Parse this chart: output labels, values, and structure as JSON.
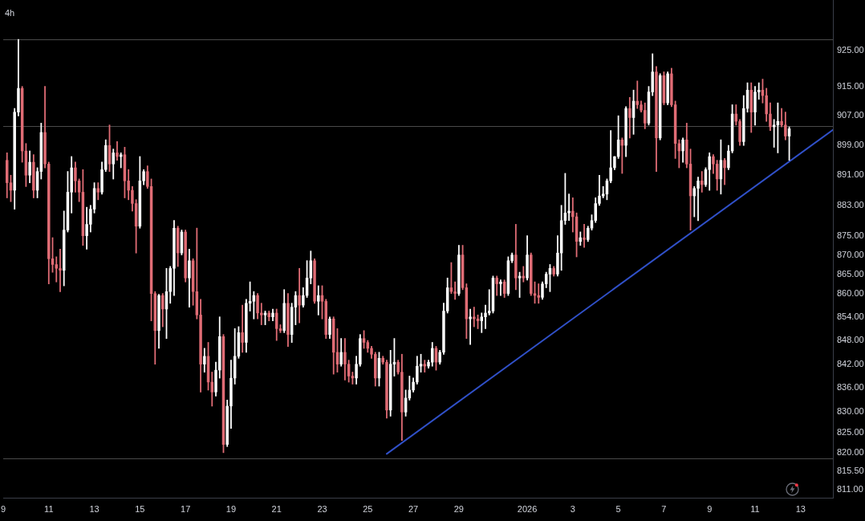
{
  "chart_data": {
    "type": "candlestick",
    "title": "4h",
    "x": [
      "2025-12-09T04:00",
      "2025-12-09T08:00",
      "2025-12-09T12:00",
      "2025-12-09T16:00",
      "2025-12-09T20:00",
      "2025-12-10T00:00",
      "2025-12-10T04:00",
      "2025-12-10T08:00",
      "2025-12-10T12:00",
      "2025-12-10T16:00",
      "2025-12-10T20:00",
      "2025-12-11T00:00",
      "2025-12-11T04:00",
      "2025-12-11T08:00",
      "2025-12-11T12:00",
      "2025-12-11T16:00",
      "2025-12-11T20:00",
      "2025-12-12T00:00",
      "2025-12-12T04:00",
      "2025-12-12T08:00",
      "2025-12-12T12:00",
      "2025-12-12T16:00",
      "2025-12-12T20:00",
      "2025-12-13T00:00",
      "2025-12-13T04:00",
      "2025-12-13T08:00",
      "2025-12-13T12:00",
      "2025-12-13T16:00",
      "2025-12-13T20:00",
      "2025-12-14T00:00",
      "2025-12-14T04:00",
      "2025-12-14T08:00",
      "2025-12-14T12:00",
      "2025-12-14T16:00",
      "2025-12-14T20:00",
      "2025-12-15T00:00",
      "2025-12-15T04:00",
      "2025-12-15T08:00",
      "2025-12-15T12:00",
      "2025-12-15T16:00",
      "2025-12-15T20:00",
      "2025-12-16T00:00",
      "2025-12-16T04:00",
      "2025-12-16T08:00",
      "2025-12-16T12:00",
      "2025-12-16T16:00",
      "2025-12-16T20:00",
      "2025-12-17T00:00",
      "2025-12-17T04:00",
      "2025-12-17T08:00",
      "2025-12-17T12:00",
      "2025-12-17T16:00",
      "2025-12-17T20:00",
      "2025-12-18T00:00",
      "2025-12-18T04:00",
      "2025-12-18T08:00",
      "2025-12-18T12:00",
      "2025-12-18T16:00",
      "2025-12-18T20:00",
      "2025-12-19T00:00",
      "2025-12-19T04:00",
      "2025-12-19T08:00",
      "2025-12-19T12:00",
      "2025-12-19T16:00",
      "2025-12-19T20:00",
      "2025-12-20T00:00",
      "2025-12-20T04:00",
      "2025-12-20T08:00",
      "2025-12-20T12:00",
      "2025-12-20T16:00",
      "2025-12-20T20:00",
      "2025-12-21T00:00",
      "2025-12-21T04:00",
      "2025-12-21T08:00",
      "2025-12-21T12:00",
      "2025-12-21T16:00",
      "2025-12-21T20:00",
      "2025-12-22T00:00",
      "2025-12-22T04:00",
      "2025-12-22T08:00",
      "2025-12-22T12:00",
      "2025-12-22T16:00",
      "2025-12-22T20:00",
      "2025-12-23T00:00",
      "2025-12-23T04:00",
      "2025-12-23T08:00",
      "2025-12-23T12:00",
      "2025-12-23T16:00",
      "2025-12-23T20:00",
      "2025-12-24T00:00",
      "2025-12-24T04:00",
      "2025-12-24T08:00",
      "2025-12-24T12:00",
      "2025-12-24T16:00",
      "2025-12-24T20:00",
      "2025-12-25T00:00",
      "2025-12-25T04:00",
      "2025-12-25T08:00",
      "2025-12-25T12:00",
      "2025-12-25T16:00",
      "2025-12-25T20:00",
      "2025-12-26T00:00",
      "2025-12-26T04:00",
      "2025-12-26T08:00",
      "2025-12-26T12:00",
      "2025-12-26T16:00",
      "2025-12-26T20:00",
      "2025-12-27T00:00",
      "2025-12-27T04:00",
      "2025-12-27T08:00",
      "2025-12-27T12:00",
      "2025-12-27T16:00",
      "2025-12-27T20:00",
      "2025-12-28T00:00",
      "2025-12-28T04:00",
      "2025-12-28T08:00",
      "2025-12-28T12:00",
      "2025-12-28T16:00",
      "2025-12-28T20:00",
      "2025-12-29T00:00",
      "2025-12-29T04:00",
      "2025-12-29T08:00",
      "2025-12-29T12:00",
      "2025-12-29T16:00",
      "2025-12-29T20:00",
      "2025-12-30T00:00",
      "2025-12-30T04:00",
      "2025-12-30T08:00",
      "2025-12-30T12:00",
      "2025-12-30T16:00",
      "2025-12-30T20:00",
      "2025-12-31T00:00",
      "2025-12-31T04:00",
      "2025-12-31T08:00",
      "2025-12-31T12:00",
      "2025-12-31T16:00",
      "2025-12-31T20:00",
      "2026-01-01T00:00",
      "2026-01-01T04:00",
      "2026-01-01T08:00",
      "2026-01-01T12:00",
      "2026-01-01T16:00",
      "2026-01-01T20:00",
      "2026-01-02T00:00",
      "2026-01-02T04:00",
      "2026-01-02T08:00",
      "2026-01-02T12:00",
      "2026-01-02T16:00",
      "2026-01-02T20:00",
      "2026-01-03T00:00",
      "2026-01-03T04:00",
      "2026-01-03T08:00",
      "2026-01-03T12:00",
      "2026-01-03T16:00",
      "2026-01-03T20:00",
      "2026-01-04T00:00",
      "2026-01-04T04:00",
      "2026-01-04T08:00",
      "2026-01-04T12:00",
      "2026-01-04T16:00",
      "2026-01-04T20:00",
      "2026-01-05T00:00",
      "2026-01-05T04:00",
      "2026-01-05T08:00",
      "2026-01-05T12:00",
      "2026-01-05T16:00",
      "2026-01-05T20:00",
      "2026-01-06T00:00",
      "2026-01-06T04:00",
      "2026-01-06T08:00",
      "2026-01-06T12:00",
      "2026-01-06T16:00",
      "2026-01-06T20:00",
      "2026-01-07T00:00",
      "2026-01-07T04:00",
      "2026-01-07T08:00",
      "2026-01-07T12:00",
      "2026-01-07T16:00",
      "2026-01-07T20:00",
      "2026-01-08T00:00",
      "2026-01-08T04:00",
      "2026-01-08T08:00",
      "2026-01-08T12:00",
      "2026-01-08T16:00",
      "2026-01-08T20:00",
      "2026-01-09T00:00",
      "2026-01-09T04:00",
      "2026-01-09T08:00",
      "2026-01-09T12:00",
      "2026-01-09T16:00",
      "2026-01-09T20:00",
      "2026-01-10T00:00",
      "2026-01-10T04:00",
      "2026-01-10T08:00",
      "2026-01-10T12:00",
      "2026-01-10T16:00",
      "2026-01-10T20:00",
      "2026-01-11T00:00",
      "2026-01-11T04:00",
      "2026-01-11T08:00",
      "2026-01-11T12:00",
      "2026-01-11T16:00",
      "2026-01-11T20:00",
      "2026-01-12T00:00",
      "2026-01-12T04:00",
      "2026-01-12T08:00",
      "2026-01-12T12:00"
    ],
    "ohlc": [
      [
        895,
        897,
        885,
        889
      ],
      [
        889,
        891,
        884,
        887
      ],
      [
        887,
        909,
        882,
        908
      ],
      [
        908,
        928,
        907,
        914.5
      ],
      [
        914.5,
        915,
        894.5,
        897.5
      ],
      [
        897.5,
        899.5,
        888,
        891
      ],
      [
        891,
        897.5,
        889,
        894.5
      ],
      [
        894.5,
        896.5,
        885,
        887
      ],
      [
        887,
        893,
        885,
        892
      ],
      [
        892,
        905,
        890,
        902.5
      ],
      [
        902.5,
        915,
        893,
        894
      ],
      [
        894,
        894.5,
        862.5,
        869
      ],
      [
        869,
        874.5,
        865.5,
        867.5
      ],
      [
        867.5,
        869.5,
        863,
        866.5
      ],
      [
        866.5,
        871.5,
        860.5,
        866
      ],
      [
        866,
        881.5,
        862,
        876.5
      ],
      [
        876.5,
        892,
        876,
        886.5
      ],
      [
        886.5,
        896,
        881,
        893
      ],
      [
        893,
        894.5,
        886.5,
        889.5
      ],
      [
        889.5,
        890,
        884,
        886.5
      ],
      [
        886.5,
        892.5,
        872.5,
        875
      ],
      [
        875,
        882.5,
        871.5,
        878
      ],
      [
        878,
        883,
        876,
        882
      ],
      [
        882,
        889,
        881,
        887.5
      ],
      [
        887.5,
        889,
        884.5,
        886.5
      ],
      [
        886.5,
        894.5,
        886,
        892.5
      ],
      [
        892.5,
        900.5,
        892,
        899
      ],
      [
        899,
        904.5,
        892,
        894
      ],
      [
        894,
        898,
        890,
        897
      ],
      [
        897,
        900,
        895,
        896
      ],
      [
        896,
        897,
        893,
        896.5
      ],
      [
        896.5,
        898.5,
        885,
        889.5
      ],
      [
        889.5,
        892.5,
        884.5,
        887
      ],
      [
        887,
        888,
        881.5,
        883.5
      ],
      [
        883.5,
        884.5,
        870.5,
        877.5
      ],
      [
        877.5,
        896,
        877,
        889.5
      ],
      [
        889.5,
        892.5,
        888.5,
        892
      ],
      [
        892,
        893.5,
        887.5,
        888
      ],
      [
        888,
        890,
        853,
        860
      ],
      [
        860,
        860.5,
        842,
        850.5
      ],
      [
        850.5,
        859.8,
        846,
        859.5
      ],
      [
        859.5,
        860,
        851.5,
        856
      ],
      [
        856,
        866.5,
        848.5,
        860.5
      ],
      [
        860.5,
        867,
        857.5,
        866.5
      ],
      [
        866.5,
        879,
        859.5,
        877
      ],
      [
        877,
        877.5,
        867,
        870.5
      ],
      [
        870.5,
        876.5,
        870,
        876
      ],
      [
        876,
        876.5,
        863,
        864
      ],
      [
        864,
        871.5,
        856.5,
        868.5
      ],
      [
        868.5,
        869,
        857,
        860.5
      ],
      [
        860.5,
        877,
        853.5,
        854.5
      ],
      [
        854.5,
        858.5,
        835,
        842
      ],
      [
        842,
        846,
        840,
        844
      ],
      [
        844,
        847.5,
        835.5,
        837.5
      ],
      [
        837.5,
        840,
        831.5,
        835
      ],
      [
        835,
        842.5,
        834,
        840.5
      ],
      [
        840.5,
        854,
        838.5,
        849
      ],
      [
        849,
        849.5,
        820,
        822
      ],
      [
        822,
        833,
        821.5,
        831.5
      ],
      [
        831.5,
        843,
        826,
        838.5
      ],
      [
        838.5,
        851,
        837,
        844
      ],
      [
        844,
        851.5,
        843.5,
        850
      ],
      [
        850,
        857,
        845,
        847.5
      ],
      [
        847.5,
        858.5,
        845,
        857.5
      ],
      [
        857.5,
        863,
        855.5,
        858
      ],
      [
        858,
        860.5,
        853.5,
        859.5
      ],
      [
        859.5,
        860,
        853.5,
        855
      ],
      [
        855,
        857.5,
        852,
        854.5
      ],
      [
        854.5,
        855.5,
        852,
        855
      ],
      [
        855,
        855.5,
        853,
        854
      ],
      [
        854,
        856,
        853,
        855
      ],
      [
        855,
        856,
        848,
        851
      ],
      [
        851,
        852,
        850,
        850.5
      ],
      [
        850.5,
        861,
        850,
        857.5
      ],
      [
        857.5,
        860,
        846.5,
        849.5
      ],
      [
        849.5,
        857.5,
        847.5,
        856.5
      ],
      [
        856.5,
        860.5,
        852,
        859.5
      ],
      [
        859.5,
        866.5,
        852.5,
        857
      ],
      [
        857,
        861.5,
        856.5,
        859.5
      ],
      [
        859.5,
        868.5,
        859,
        864
      ],
      [
        864,
        871,
        862.5,
        868.5
      ],
      [
        868.5,
        869,
        857.5,
        858
      ],
      [
        858,
        862,
        854.5,
        859.5
      ],
      [
        859.5,
        862,
        853.5,
        858
      ],
      [
        858,
        858.5,
        848.5,
        849.5
      ],
      [
        849.5,
        854,
        848.5,
        853.5
      ],
      [
        853.5,
        854,
        839.5,
        845
      ],
      [
        845,
        851,
        840,
        842
      ],
      [
        842,
        848.5,
        841.5,
        845
      ],
      [
        845,
        848.5,
        838,
        842
      ],
      [
        842,
        843,
        837.5,
        839
      ],
      [
        839,
        840,
        837,
        838.5
      ],
      [
        838.5,
        844,
        837,
        842
      ],
      [
        842,
        849.5,
        841.5,
        848.5
      ],
      [
        848.5,
        850.5,
        846,
        847.5
      ],
      [
        847.5,
        848,
        845,
        846
      ],
      [
        846,
        846.5,
        843.5,
        844.5
      ],
      [
        844.5,
        845,
        836.5,
        838.5
      ],
      [
        838.5,
        845,
        836.5,
        843.5
      ],
      [
        843.5,
        844,
        842,
        842.5
      ],
      [
        842.5,
        843,
        828.5,
        830.5
      ],
      [
        830.5,
        845.5,
        829,
        842
      ],
      [
        842,
        848.5,
        839,
        842.5
      ],
      [
        842.5,
        843,
        839.5,
        840
      ],
      [
        840,
        844.5,
        823,
        830
      ],
      [
        830,
        835.5,
        829,
        833.5
      ],
      [
        833.5,
        839,
        833,
        835.5
      ],
      [
        835.5,
        838.5,
        835,
        837.5
      ],
      [
        837.5,
        844,
        837,
        841.5
      ],
      [
        841.5,
        844.5,
        840,
        842
      ],
      [
        842,
        843,
        840,
        841.5
      ],
      [
        841.5,
        843,
        841,
        842.5
      ],
      [
        842.5,
        847.5,
        841.5,
        846
      ],
      [
        846,
        846.5,
        840.5,
        842.5
      ],
      [
        842.5,
        845.5,
        842,
        845
      ],
      [
        845,
        857.5,
        844.5,
        855.5
      ],
      [
        855.5,
        864,
        855,
        861.5
      ],
      [
        861.5,
        868,
        860,
        860.5
      ],
      [
        860.5,
        863,
        858.5,
        860
      ],
      [
        860,
        872.5,
        859.5,
        870
      ],
      [
        870,
        872.5,
        861,
        861.5
      ],
      [
        861.5,
        862.5,
        848.5,
        853.5
      ],
      [
        853.5,
        856,
        847,
        854
      ],
      [
        854,
        856.5,
        851.5,
        853.5
      ],
      [
        853.5,
        854.5,
        851,
        853
      ],
      [
        853,
        855,
        850,
        854
      ],
      [
        854,
        857,
        851,
        855
      ],
      [
        855,
        861,
        854.5,
        855.5
      ],
      [
        855.5,
        864.5,
        855,
        864
      ],
      [
        864,
        864.5,
        859.5,
        862.5
      ],
      [
        862.5,
        863.5,
        859.5,
        863
      ],
      [
        863,
        863.5,
        859,
        860
      ],
      [
        860,
        869.5,
        859.5,
        868.5
      ],
      [
        868.5,
        870.5,
        868,
        870
      ],
      [
        870,
        878,
        861,
        864
      ],
      [
        864,
        865.5,
        859,
        864.5
      ],
      [
        864.5,
        867,
        863,
        864
      ],
      [
        864,
        875,
        863.5,
        870
      ],
      [
        870,
        870.5,
        859.5,
        860
      ],
      [
        860,
        863,
        857.5,
        859.5
      ],
      [
        859.5,
        862.5,
        857.5,
        859
      ],
      [
        859,
        863,
        858.5,
        862.5
      ],
      [
        862.5,
        865.5,
        861.5,
        865
      ],
      [
        865,
        867.5,
        860.5,
        866.5
      ],
      [
        866.5,
        867,
        864.5,
        865
      ],
      [
        865,
        875,
        864.5,
        870.5
      ],
      [
        870.5,
        883,
        866,
        879
      ],
      [
        879,
        891.5,
        878,
        881
      ],
      [
        881,
        886,
        879,
        881.5
      ],
      [
        881.5,
        885,
        876,
        880
      ],
      [
        880,
        881,
        869.5,
        873.5
      ],
      [
        873.5,
        876,
        872.5,
        874.5
      ],
      [
        874.5,
        878,
        872,
        874
      ],
      [
        874,
        877.5,
        873.5,
        877
      ],
      [
        877,
        880.5,
        876.5,
        879
      ],
      [
        879,
        885,
        878.5,
        883.5
      ],
      [
        883.5,
        891,
        883,
        885.5
      ],
      [
        885.5,
        888,
        885,
        886
      ],
      [
        886,
        890,
        884.5,
        889.5
      ],
      [
        889.5,
        903,
        889,
        893
      ],
      [
        893,
        896,
        892.5,
        896
      ],
      [
        896,
        907,
        895.5,
        900.5
      ],
      [
        900.5,
        901,
        891.5,
        899
      ],
      [
        899,
        909.5,
        896,
        909
      ],
      [
        909,
        912,
        901,
        906.5
      ],
      [
        906.5,
        914,
        902,
        911
      ],
      [
        911,
        916.5,
        909,
        910
      ],
      [
        910,
        911,
        908,
        908.5
      ],
      [
        908.5,
        910.5,
        903.5,
        905
      ],
      [
        905,
        915,
        904.5,
        913.5
      ],
      [
        913.5,
        924,
        912.5,
        919
      ],
      [
        919,
        920.5,
        892,
        901
      ],
      [
        901,
        918.5,
        900.5,
        918
      ],
      [
        918,
        919,
        910,
        910.5
      ],
      [
        910.5,
        919,
        910,
        918.5
      ],
      [
        918.5,
        920,
        909.5,
        910
      ],
      [
        910,
        911,
        895.5,
        899.5
      ],
      [
        899.5,
        900.5,
        893,
        897.5
      ],
      [
        897.5,
        901,
        894.5,
        900.5
      ],
      [
        900.5,
        905,
        893,
        894
      ],
      [
        894,
        898,
        876.5,
        885.5
      ],
      [
        885.5,
        888,
        880,
        887.5
      ],
      [
        887.5,
        890.5,
        879,
        889.5
      ],
      [
        889.5,
        892,
        886.5,
        888.5
      ],
      [
        888.5,
        893,
        888,
        892.5
      ],
      [
        892.5,
        897,
        887,
        896
      ],
      [
        896,
        896.5,
        891.5,
        894
      ],
      [
        894,
        895,
        887,
        890
      ],
      [
        890,
        900.5,
        886,
        895
      ],
      [
        895,
        895.5,
        888.5,
        893
      ],
      [
        893,
        899,
        892.5,
        897.5
      ],
      [
        897.5,
        910,
        897,
        907.5
      ],
      [
        907.5,
        910,
        904.5,
        905.5
      ],
      [
        905.5,
        906,
        899,
        900
      ],
      [
        900,
        912.5,
        899,
        909
      ],
      [
        909,
        916,
        908,
        914
      ],
      [
        914,
        916,
        902.5,
        908
      ],
      [
        908,
        915,
        904.5,
        913.5
      ],
      [
        913.5,
        916,
        911.5,
        914
      ],
      [
        914,
        917,
        910.5,
        912.5
      ],
      [
        912.5,
        914.5,
        905.5,
        907.5
      ],
      [
        907.5,
        910.5,
        903,
        904
      ],
      [
        904,
        906,
        898.5,
        904.5
      ],
      [
        904.5,
        910.5,
        897,
        905.5
      ],
      [
        905.5,
        909,
        904,
        904.5
      ],
      [
        904.5,
        908,
        900.5,
        901.5
      ],
      [
        901.5,
        904,
        895,
        903.5
      ]
    ],
    "colors": [
      "#e06c75",
      "#e06c75",
      "#ffffff",
      "#ffffff",
      "#e06c75",
      "#e06c75",
      "#ffffff",
      "#e06c75",
      "#ffffff",
      "#ffffff",
      "#e06c75",
      "#e06c75",
      "#e06c75",
      "#e06c75",
      "#e06c75",
      "#ffffff",
      "#ffffff",
      "#ffffff",
      "#e06c75",
      "#e06c75",
      "#e06c75",
      "#ffffff",
      "#ffffff",
      "#ffffff",
      "#e06c75",
      "#ffffff",
      "#ffffff",
      "#e06c75",
      "#ffffff",
      "#e06c75",
      "#ffffff",
      "#e06c75",
      "#e06c75",
      "#e06c75",
      "#e06c75",
      "#ffffff",
      "#ffffff",
      "#e06c75",
      "#e06c75",
      "#e06c75",
      "#ffffff",
      "#e06c75",
      "#ffffff",
      "#ffffff",
      "#ffffff",
      "#e06c75",
      "#ffffff",
      "#e06c75",
      "#ffffff",
      "#e06c75",
      "#e06c75",
      "#e06c75",
      "#ffffff",
      "#e06c75",
      "#e06c75",
      "#ffffff",
      "#ffffff",
      "#e06c75",
      "#ffffff",
      "#ffffff",
      "#ffffff",
      "#ffffff",
      "#e06c75",
      "#ffffff",
      "#ffffff",
      "#ffffff",
      "#e06c75",
      "#e06c75",
      "#ffffff",
      "#e06c75",
      "#ffffff",
      "#e06c75",
      "#e06c75",
      "#ffffff",
      "#e06c75",
      "#ffffff",
      "#ffffff",
      "#e06c75",
      "#ffffff",
      "#ffffff",
      "#ffffff",
      "#e06c75",
      "#ffffff",
      "#e06c75",
      "#e06c75",
      "#ffffff",
      "#e06c75",
      "#e06c75",
      "#ffffff",
      "#e06c75",
      "#e06c75",
      "#e06c75",
      "#ffffff",
      "#ffffff",
      "#e06c75",
      "#e06c75",
      "#e06c75",
      "#e06c75",
      "#ffffff",
      "#e06c75",
      "#e06c75",
      "#ffffff",
      "#ffffff",
      "#e06c75",
      "#e06c75",
      "#ffffff",
      "#ffffff",
      "#ffffff",
      "#ffffff",
      "#ffffff",
      "#e06c75",
      "#ffffff",
      "#ffffff",
      "#e06c75",
      "#ffffff",
      "#ffffff",
      "#ffffff",
      "#e06c75",
      "#e06c75",
      "#ffffff",
      "#e06c75",
      "#e06c75",
      "#ffffff",
      "#e06c75",
      "#e06c75",
      "#ffffff",
      "#ffffff",
      "#ffffff",
      "#ffffff",
      "#e06c75",
      "#ffffff",
      "#e06c75",
      "#ffffff",
      "#ffffff",
      "#e06c75",
      "#ffffff",
      "#e06c75",
      "#ffffff",
      "#e06c75",
      "#e06c75",
      "#e06c75",
      "#ffffff",
      "#ffffff",
      "#ffffff",
      "#e06c75",
      "#ffffff",
      "#ffffff",
      "#ffffff",
      "#ffffff",
      "#e06c75",
      "#e06c75",
      "#ffffff",
      "#e06c75",
      "#ffffff",
      "#ffffff",
      "#ffffff",
      "#ffffff",
      "#ffffff",
      "#ffffff",
      "#ffffff",
      "#ffffff",
      "#ffffff",
      "#e06c75",
      "#ffffff",
      "#e06c75",
      "#ffffff",
      "#e06c75",
      "#e06c75",
      "#e06c75",
      "#ffffff",
      "#ffffff",
      "#e06c75",
      "#ffffff",
      "#e06c75",
      "#ffffff",
      "#e06c75",
      "#e06c75",
      "#e06c75",
      "#ffffff",
      "#e06c75",
      "#e06c75",
      "#ffffff",
      "#ffffff",
      "#e06c75",
      "#ffffff",
      "#ffffff",
      "#e06c75",
      "#e06c75",
      "#ffffff",
      "#e06c75",
      "#ffffff",
      "#ffffff",
      "#e06c75",
      "#e06c75",
      "#ffffff",
      "#ffffff",
      "#e06c75",
      "#ffffff",
      "#ffffff",
      "#e06c75",
      "#e06c75",
      "#e06c75",
      "#ffffff",
      "#ffffff",
      "#e06c75",
      "#e06c75",
      "#ffffff"
    ],
    "series": [
      {
        "type": "line",
        "x": [
          "2025-12-25T20:00",
          "2026-01-14T10:00"
        ],
        "values": [
          819.7,
          903.2
        ],
        "color": "#3050c8",
        "marker": "none"
      }
    ],
    "xlim": [
      "2025-12-09T00:00",
      "2026-01-14T10:00"
    ],
    "xticks": [
      {
        "value": "2025-12-09",
        "label": "9"
      },
      {
        "value": "2025-12-11",
        "label": "11"
      },
      {
        "value": "2025-12-13",
        "label": "13"
      },
      {
        "value": "2025-12-15",
        "label": "15"
      },
      {
        "value": "2025-12-17",
        "label": "17"
      },
      {
        "value": "2025-12-19",
        "label": "19"
      },
      {
        "value": "2025-12-21",
        "label": "21"
      },
      {
        "value": "2025-12-23",
        "label": "23"
      },
      {
        "value": "2025-12-25",
        "label": "25"
      },
      {
        "value": "2025-12-27",
        "label": "27"
      },
      {
        "value": "2025-12-29",
        "label": "29"
      },
      {
        "value": "2026-01-01",
        "label": "2026"
      },
      {
        "value": "2026-01-03",
        "label": "3"
      },
      {
        "value": "2026-01-05",
        "label": "5"
      },
      {
        "value": "2026-01-07",
        "label": "7"
      },
      {
        "value": "2026-01-09",
        "label": "9"
      },
      {
        "value": "2026-01-11",
        "label": "11"
      },
      {
        "value": "2026-01-13",
        "label": "13"
      }
    ],
    "ylim": [
      809,
      939
    ],
    "yticks": [
      {
        "value": 925,
        "label": "925.00"
      },
      {
        "value": 915,
        "label": "915.00"
      },
      {
        "value": 907,
        "label": "907.00"
      },
      {
        "value": 899,
        "label": "899.00"
      },
      {
        "value": 891,
        "label": "891.00"
      },
      {
        "value": 883,
        "label": "883.00"
      },
      {
        "value": 875,
        "label": "875.00"
      },
      {
        "value": 870,
        "label": "870.00"
      },
      {
        "value": 865,
        "label": "865.00"
      },
      {
        "value": 860,
        "label": "860.00"
      },
      {
        "value": 854,
        "label": "854.00"
      },
      {
        "value": 848,
        "label": "848.00"
      },
      {
        "value": 842,
        "label": "842.00"
      },
      {
        "value": 836,
        "label": "836.00"
      },
      {
        "value": 830,
        "label": "830.00"
      },
      {
        "value": 825,
        "label": "825.00"
      },
      {
        "value": 820,
        "label": "820.00"
      },
      {
        "value": 815.5,
        "label": "815.50"
      },
      {
        "value": 811,
        "label": "811.00"
      }
    ],
    "log": "y",
    "ref_lines": [
      {
        "axis": "y",
        "value": 928,
        "color": "#4a4a4a"
      },
      {
        "axis": "y",
        "value": 904.3,
        "color": "#4a4a4a"
      },
      {
        "axis": "y",
        "value": 818.5,
        "color": "#4a4a4a"
      }
    ]
  }
}
